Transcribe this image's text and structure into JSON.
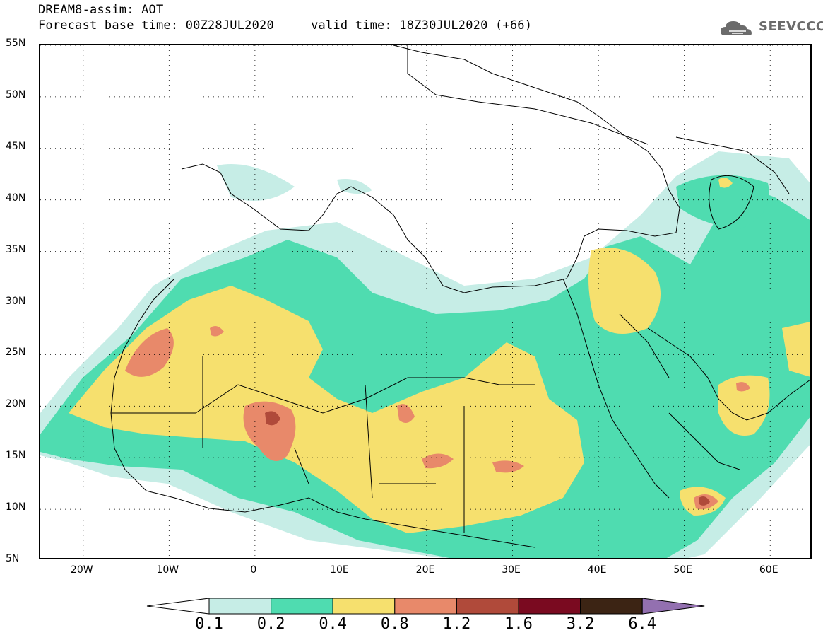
{
  "header": {
    "line1": "DREAM8-assim: AOT",
    "line2_base": "Forecast base time: 00Z28JUL2020",
    "line2_valid": "valid time: 18Z30JUL2020 (+66)"
  },
  "logo": {
    "text": "SEEVCCC",
    "icon": "cloud-icon"
  },
  "map": {
    "lat_labels": [
      "55N",
      "50N",
      "45N",
      "40N",
      "35N",
      "30N",
      "25N",
      "20N",
      "15N",
      "10N",
      "5N"
    ],
    "lon_labels": [
      "20W",
      "10W",
      "0",
      "10E",
      "20E",
      "30E",
      "40E",
      "50E",
      "60E"
    ],
    "lat_values": [
      55,
      50,
      45,
      40,
      35,
      30,
      25,
      20,
      15,
      10,
      5
    ],
    "lon_values": [
      -20,
      -10,
      0,
      10,
      20,
      30,
      40,
      50,
      60
    ],
    "extent": {
      "lon_min": -25,
      "lon_max": 65,
      "lat_min": 5,
      "lat_max": 55
    },
    "field": "AOT"
  },
  "legend": {
    "levels": [
      "0.1",
      "0.2",
      "0.4",
      "0.8",
      "1.2",
      "1.6",
      "3.2",
      "6.4"
    ],
    "colors": [
      "#ffffff",
      "#c6ede6",
      "#4fdcb0",
      "#f6e06e",
      "#e8896a",
      "#b04a3a",
      "#7a0a20",
      "#3c2414",
      "#9370b0"
    ]
  }
}
